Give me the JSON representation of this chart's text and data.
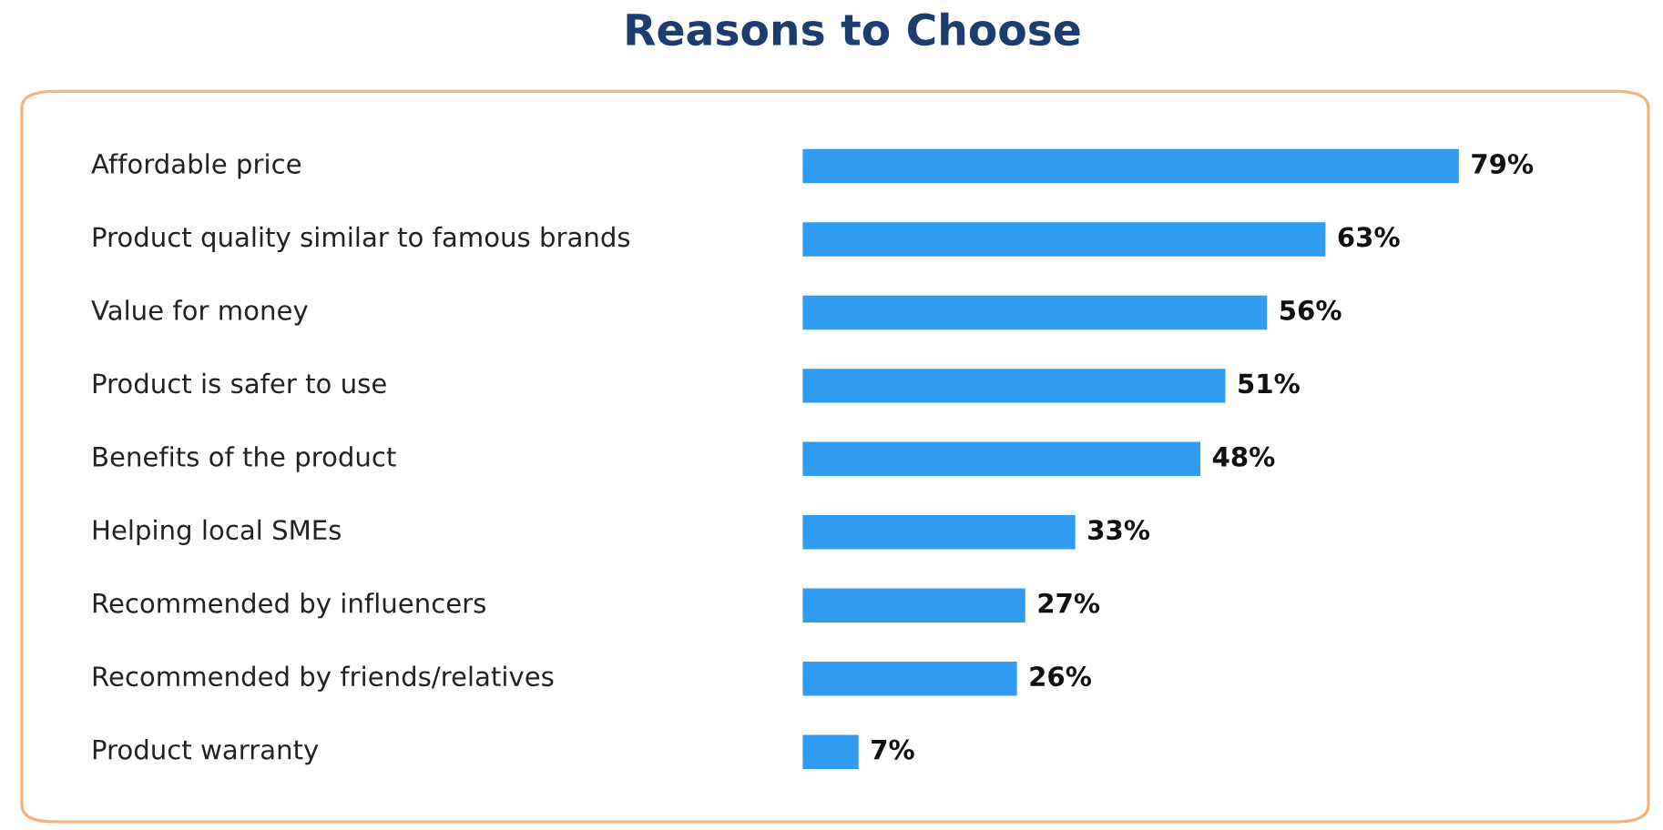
{
  "chart_data": {
    "type": "bar",
    "orientation": "horizontal",
    "title": "Reasons to Choose",
    "categories": [
      "Affordable price",
      "Product quality similar to famous brands",
      "Value for money",
      "Product is safer to use",
      "Benefits of the product",
      "Helping local SMEs",
      "Recommended by influencers",
      "Recommended by friends/relatives",
      "Product warranty"
    ],
    "values": [
      79,
      63,
      56,
      51,
      48,
      33,
      27,
      26,
      7
    ],
    "value_labels": [
      "79%",
      "63%",
      "56%",
      "51%",
      "48%",
      "33%",
      "27%",
      "26%",
      "7%"
    ],
    "color": "#2f9cf2"
  }
}
